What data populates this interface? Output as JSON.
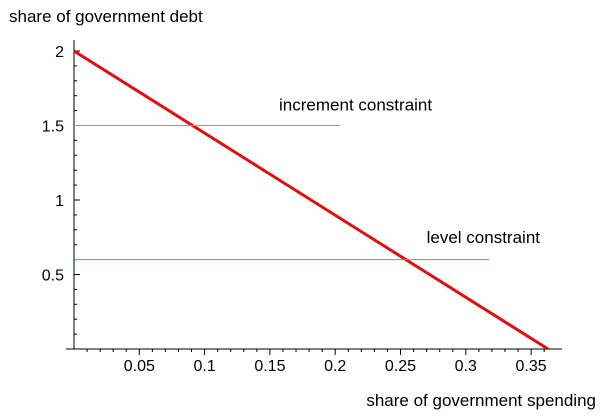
{
  "chart_data": {
    "type": "line",
    "title": "",
    "xlabel": "share of government spending",
    "ylabel": "share of government debt",
    "xlim": [
      0,
      0.37
    ],
    "ylim": [
      0,
      2
    ],
    "xticks": [
      0.05,
      0.1,
      0.15,
      0.2,
      0.25,
      0.3,
      0.35
    ],
    "xtick_labels": [
      "0.05",
      "0.1",
      "0.15",
      "0.2",
      "0.25",
      "0.3",
      "0.35"
    ],
    "yticks": [
      0.5,
      1,
      1.5,
      2
    ],
    "ytick_labels": [
      "0.5",
      "1",
      "1.5",
      "2"
    ],
    "grid": false,
    "series": [
      {
        "values": [
          [
            0,
            2.0
          ],
          [
            0.363,
            0.0
          ]
        ],
        "color": "#e01010"
      },
      {
        "values": [
          [
            0,
            1.5
          ],
          [
            0.204,
            1.5
          ]
        ],
        "color": "#5fa9e6"
      },
      {
        "values": [
          [
            0,
            0.6
          ],
          [
            0.318,
            0.6
          ]
        ],
        "color": "#33cc33"
      }
    ],
    "annotations": [
      {
        "text": "increment constraint",
        "x": 0.157,
        "y": 1.6
      },
      {
        "text": "level constraint",
        "x": 0.27,
        "y": 0.71
      }
    ]
  }
}
